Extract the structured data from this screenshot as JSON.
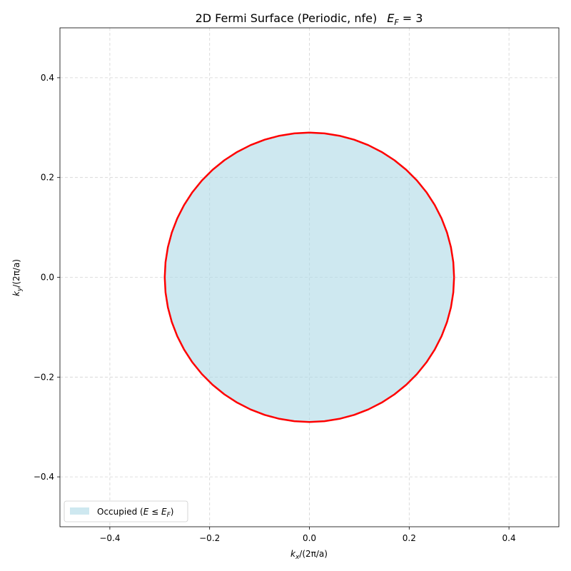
{
  "chart_data": {
    "type": "area",
    "title": "2D Fermi Surface (Periodic, nfe)",
    "title_math_var": "E",
    "title_math_sub": "F",
    "title_math_rest": " = 3",
    "xlabel": {
      "var": "k",
      "sub": "x",
      "rest": "/(2π/a)"
    },
    "ylabel": {
      "var": "k",
      "sub": "y",
      "rest": "/(2π/a)"
    },
    "xlim": [
      -0.5,
      0.5
    ],
    "ylim": [
      -0.5,
      0.5
    ],
    "xticks": [
      -0.4,
      -0.2,
      0.0,
      0.2,
      0.4
    ],
    "yticks": [
      -0.4,
      -0.2,
      0.0,
      0.2,
      0.4
    ],
    "xtick_labels": [
      "−0.4",
      "−0.2",
      "0.0",
      "0.2",
      "0.4"
    ],
    "ytick_labels": [
      "−0.4",
      "−0.2",
      "0.0",
      "0.2",
      "0.4"
    ],
    "grid": true,
    "fermi_surface": {
      "shape": "circle",
      "center": [
        0.0,
        0.0
      ],
      "radius": 0.29,
      "segments": 60,
      "line_color": "#ff0000",
      "fill_color": "#add8e6"
    },
    "legend": {
      "placement": "lower-left",
      "entries": [
        {
          "label_prefix": "Occupied (",
          "label_math": "E ≤ E",
          "label_sub": "F",
          "label_suffix": ")",
          "color": "#add8e6"
        }
      ]
    }
  }
}
